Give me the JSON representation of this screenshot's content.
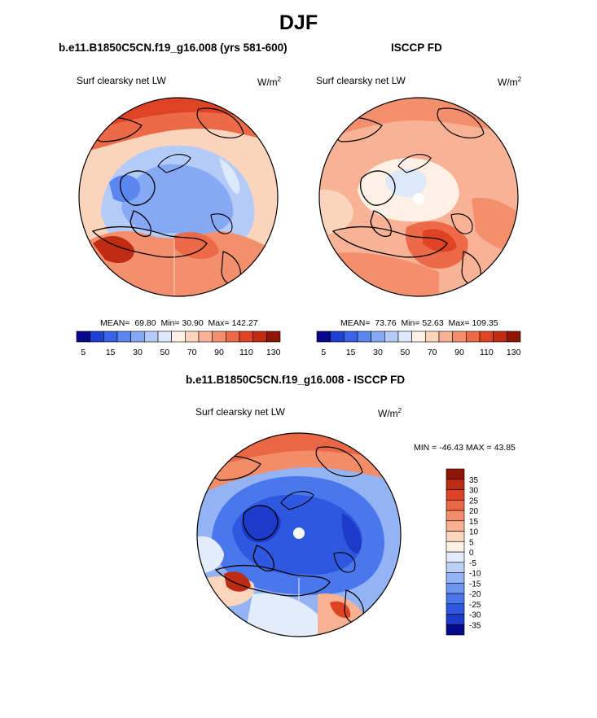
{
  "figure": {
    "season_title": "DJF",
    "diff_title": "b.e11.B1850C5CN.f19_g16.008 - ISCCP FD"
  },
  "panels": {
    "model": {
      "title": "b.e11.B1850C5CN.f19_g16.008 (yrs 581-600)",
      "variable": "Surf clearsky net LW",
      "unit": "W/m",
      "unit_exp": "2",
      "mean_label": "MEAN=",
      "mean": "69.80",
      "min_label": "Min=",
      "min": "30.90",
      "max_label": "Max=",
      "max": "142.27"
    },
    "obs": {
      "title": "ISCCP FD",
      "variable": "Surf clearsky net LW",
      "unit": "W/m",
      "unit_exp": "2",
      "mean_label": "MEAN=",
      "mean": "73.76",
      "min_label": "Min=",
      "min": "52.63",
      "max_label": "Max=",
      "max": "109.35"
    },
    "diff": {
      "variable": "Surf clearsky net LW",
      "unit": "W/m",
      "unit_exp": "2",
      "minmax": "MIN = -46.43 MAX =  43.85"
    }
  },
  "colorbars": {
    "abs": {
      "colors": [
        "#08088a",
        "#1f3fd0",
        "#3a62e8",
        "#5b86f0",
        "#86a9f5",
        "#b4cbf7",
        "#dde8fa",
        "#fdf0e4",
        "#fbd4bd",
        "#f8b295",
        "#f38f6d",
        "#ec6a47",
        "#de4423",
        "#c02c12",
        "#8e1607"
      ],
      "tick_labels": [
        "5",
        "15",
        "30",
        "50",
        "70",
        "90",
        "110",
        "130"
      ]
    },
    "diff": {
      "colors": [
        "#08088a",
        "#1c3bc8",
        "#2f58e0",
        "#4a77ec",
        "#6d95f2",
        "#94b3f5",
        "#bcd0f7",
        "#e3ecfa",
        "#fdf1e6",
        "#fbd5be",
        "#f8b193",
        "#f28c69",
        "#ea6745",
        "#dc4424",
        "#bd2b12",
        "#8e1607"
      ],
      "tick_labels": [
        "35",
        "30",
        "25",
        "20",
        "15",
        "10",
        "5",
        "0",
        "-5",
        "-10",
        "-15",
        "-20",
        "-25",
        "-30",
        "-35"
      ]
    }
  },
  "colors": {
    "land_outline": "#000000",
    "missing": "#ffffff"
  }
}
